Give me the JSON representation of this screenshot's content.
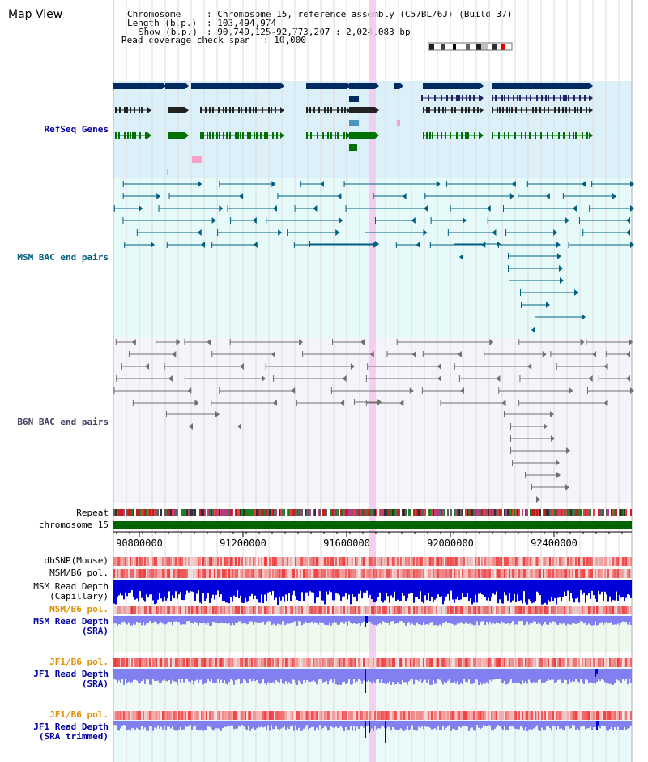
{
  "app": {
    "title": "Map View"
  },
  "info": {
    "chromosome_key": "Chromosome",
    "chromosome_val": ": Chromosome 15, reference assembly (C57BL/6J) (Build 37)",
    "length_key": "Length (b.p.)",
    "length_val": ": 103,494,974",
    "show_key": "Show (b.p.)",
    "show_val": ": 90,749,125-92,773,207 : 2,024,083 bp",
    "coverage_key": "Read coverage check span",
    "coverage_val": ": 10,000"
  },
  "tracks": {
    "refseq": "RefSeq Genes",
    "msm_bac": "MSM BAC end pairs",
    "b6n_bac": "B6N BAC end pairs",
    "repeat": "Repeat",
    "chromosome": "chromosome 15",
    "dbsnp": "dbSNP(Mouse)",
    "msm_b6_pol_1": "MSM/B6 pol.",
    "msm_read_depth_cap_1": "MSM Read Depth",
    "msm_read_depth_cap_2": "(Capillary)",
    "msm_b6_pol_2": "MSM/B6 pol.",
    "msm_read_depth_sra_1": "MSM Read Depth",
    "msm_read_depth_sra_2": "(SRA)",
    "jf1_b6_pol_1": "JF1/B6 pol.",
    "jf1_read_depth_1": "JF1 Read Depth",
    "jf1_read_depth_2": "(SRA)",
    "jf1_b6_pol_2": "JF1/B6 pol.",
    "jf1_read_depth_trim_1": "JF1 Read Depth",
    "jf1_read_depth_trim_2": "(SRA trimmed)"
  },
  "axis": {
    "ticks": [
      "90800000",
      "91200000",
      "91600000",
      "92000000",
      "92400000"
    ]
  },
  "colors": {
    "refseq_bg": "#dcf0fa",
    "msm_bg": "#e6fafa",
    "b6n_bg": "#f4f4fa",
    "gene_dark": "#002a60",
    "gene_mid": "#4a95c0",
    "gene_green": "#007000",
    "pink": "#f8a0c8",
    "msm_bac": "#005f80",
    "b6n_bac": "#707070",
    "chromosome": "#006400",
    "highlight": "#f5c8f0",
    "depth_dark": "#0000e0",
    "depth_light": "#8080f0",
    "snp_red": "#f04040",
    "label_blue": "#0000a0",
    "label_orange": "#e09000",
    "label_teal": "#006080"
  }
}
